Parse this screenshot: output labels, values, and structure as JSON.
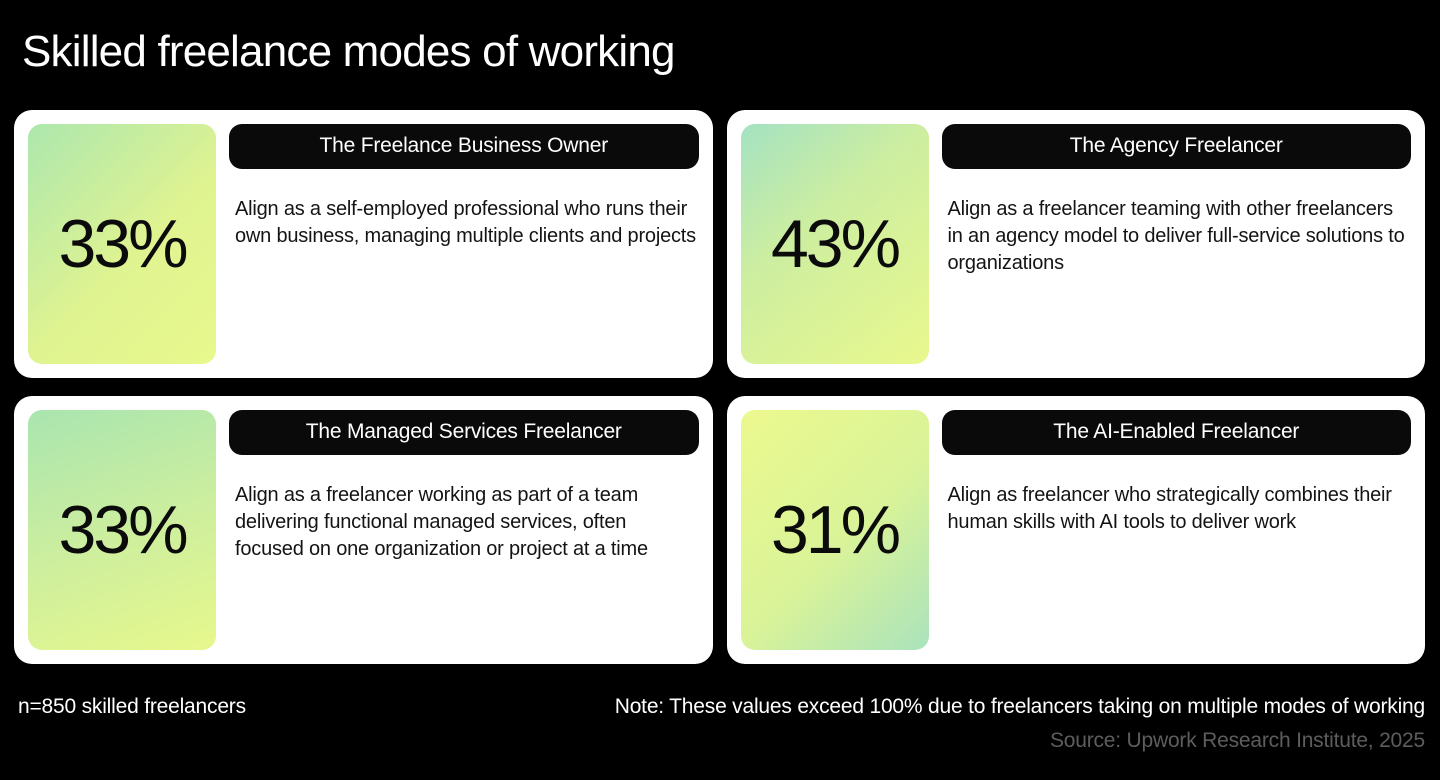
{
  "header": {
    "title": "Skilled freelance modes of working"
  },
  "cards": [
    {
      "percent": "33%",
      "title": "The Freelance Business Owner",
      "description": "Align as a self-employed professional who runs their own business, managing multiple clients and projects"
    },
    {
      "percent": "43%",
      "title": "The Agency Freelancer",
      "description": "Align as a freelancer teaming with other freelancers in an agency model to deliver full-service solutions to organizations"
    },
    {
      "percent": "33%",
      "title": "The Managed Services Freelancer",
      "description": "Align as a freelancer working as part of a team delivering functional managed services, often focused on one organization or project at a time"
    },
    {
      "percent": "31%",
      "title": "The AI-Enabled Freelancer",
      "description": "Align as freelancer who strategically combines their human skills with AI tools to deliver work"
    }
  ],
  "footer": {
    "sample_size": "n=850 skilled freelancers",
    "note": "Note: These values exceed 100% due to freelancers taking on multiple modes of working",
    "source": "Source: Upwork Research Institute, 2025"
  },
  "colors": {
    "background": "#000000",
    "card_background": "#ffffff",
    "pill_background": "#0a0a0a",
    "gradient_green": "#ace7ae",
    "gradient_mint": "#a4e2c2",
    "gradient_yellow": "#e8f88c",
    "source_text": "#5d5d5d"
  },
  "chart_data": {
    "type": "table",
    "title": "Skilled freelance modes of working",
    "categories": [
      "The Freelance Business Owner",
      "The Agency Freelancer",
      "The Managed Services Freelancer",
      "The AI-Enabled Freelancer"
    ],
    "values": [
      33,
      43,
      33,
      31
    ],
    "unit": "%",
    "sample": "n=850 skilled freelancers",
    "note": "These values exceed 100% due to freelancers taking on multiple modes of working",
    "source": "Upwork Research Institute, 2025"
  }
}
